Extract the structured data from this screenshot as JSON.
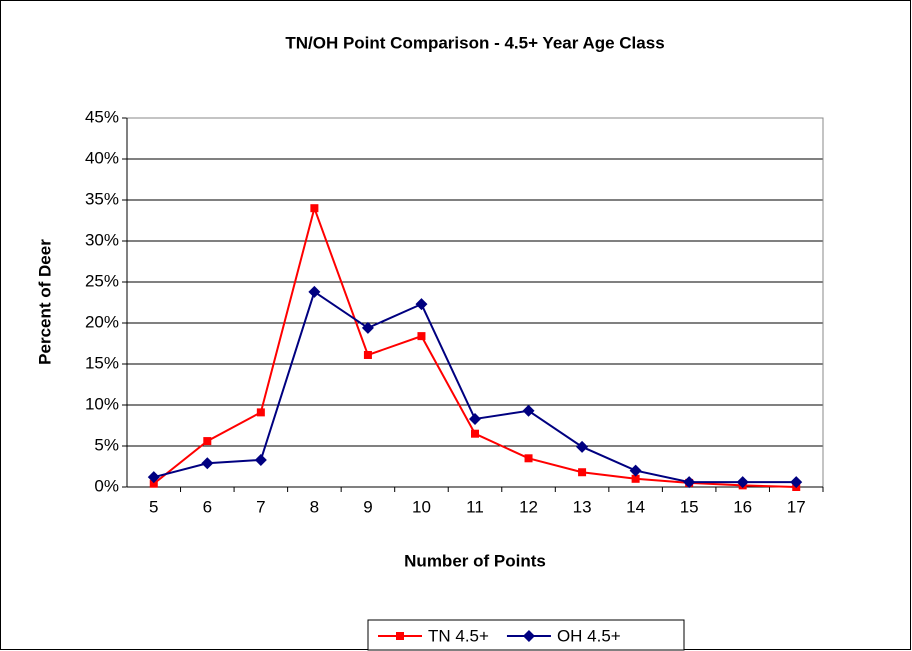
{
  "chart_data": {
    "type": "line",
    "title": "TN/OH Point Comparison - 4.5+ Year Age Class",
    "x_label": "Number of Points",
    "y_label": "Percent of Deer",
    "categories": [
      "5",
      "6",
      "7",
      "8",
      "9",
      "10",
      "11",
      "12",
      "13",
      "14",
      "15",
      "16",
      "17"
    ],
    "series": [
      {
        "name": "TN 4.5+",
        "color": "#ff0000",
        "marker": "square",
        "values": [
          0.4,
          5.6,
          9.1,
          34.0,
          16.1,
          18.4,
          6.5,
          3.5,
          1.8,
          1.0,
          0.5,
          0.2,
          0
        ]
      },
      {
        "name": "OH 4.5+",
        "color": "#000080",
        "marker": "diamond",
        "values": [
          1.2,
          2.9,
          3.3,
          23.8,
          19.4,
          22.3,
          8.3,
          9.3,
          4.9,
          2.0,
          0.6,
          0.6,
          0.6
        ]
      }
    ],
    "ylim": [
      0,
      45
    ],
    "yticks": [
      {
        "value": 0,
        "label": "0%"
      },
      {
        "value": 5,
        "label": "5%"
      },
      {
        "value": 10,
        "label": "10%"
      },
      {
        "value": 15,
        "label": "15%"
      },
      {
        "value": 20,
        "label": "20%"
      },
      {
        "value": 25,
        "label": "25%"
      },
      {
        "value": 30,
        "label": "30%"
      },
      {
        "value": 35,
        "label": "35%"
      },
      {
        "value": 40,
        "label": "40%"
      },
      {
        "value": 45,
        "label": "45%"
      }
    ],
    "grid": true,
    "legend": "bottom"
  }
}
